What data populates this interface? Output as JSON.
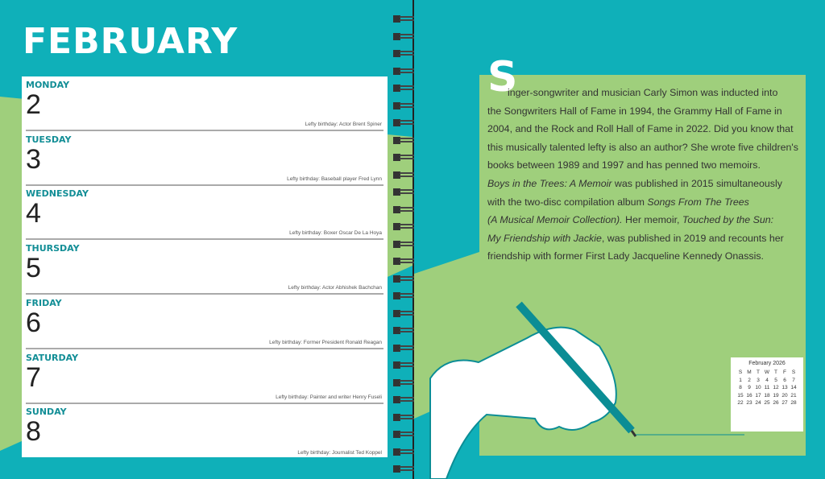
{
  "left_page": {
    "month_title": "FEBRUARY",
    "days": [
      {
        "name": "MONDAY",
        "number": "2",
        "note": "Lefty birthday: Actor Brent Spiner"
      },
      {
        "name": "TUESDAY",
        "number": "3",
        "note": "Lefty birthday: Baseball player Fred Lynn"
      },
      {
        "name": "WEDNESDAY",
        "number": "4",
        "note": "Lefty birthday: Boxer Oscar De La Hoya"
      },
      {
        "name": "THURSDAY",
        "number": "5",
        "note": "Lefty birthday: Actor Abhishek Bachchan"
      },
      {
        "name": "FRIDAY",
        "number": "6",
        "note": "Lefty birthday: Former President Ronald Reagan"
      },
      {
        "name": "SATURDAY",
        "number": "7",
        "note": "Lefty birthday: Painter and writer Henry Fuseli"
      },
      {
        "name": "SUNDAY",
        "number": "8",
        "note": "Lefty birthday: Journalist Ted Koppel"
      }
    ]
  },
  "right_page": {
    "drop_cap": "S",
    "lines": [
      [
        {
          "t": "inger-songwriter and musician Carly Simon was inducted into",
          "i": false
        }
      ],
      [
        {
          "t": "the Songwriters Hall of Fame in 1994, the Grammy Hall of Fame in",
          "i": false
        }
      ],
      [
        {
          "t": "2004, and the Rock and Roll Hall of Fame in 2022. Did you know that",
          "i": false
        }
      ],
      [
        {
          "t": "this musically talented lefty is also an author? She wrote five children's",
          "i": false
        }
      ],
      [
        {
          "t": "books between 1989 and 1997 and has penned two memoirs.",
          "i": false
        }
      ],
      [
        {
          "t": "Boys in the Trees: A Memoir",
          "i": true
        },
        {
          "t": " was published in 2015 simultaneously",
          "i": false
        }
      ],
      [
        {
          "t": "with the two-disc compilation album ",
          "i": false
        },
        {
          "t": "Songs From The Trees",
          "i": true
        }
      ],
      [
        {
          "t": "(A Musical Memoir Collection).",
          "i": true
        },
        {
          "t": " Her memoir, ",
          "i": false
        },
        {
          "t": "Touched by the Sun:",
          "i": true
        }
      ],
      [
        {
          "t": "My Friendship with Jackie",
          "i": true
        },
        {
          "t": ", was published in 2019 and recounts her",
          "i": false
        }
      ],
      [
        {
          "t": "friendship with former First Lady Jacqueline Kennedy Onassis.",
          "i": false
        }
      ]
    ],
    "mini_calendar": {
      "title": "February 2026",
      "weekdays": [
        "S",
        "M",
        "T",
        "W",
        "T",
        "F",
        "S"
      ],
      "weeks": [
        [
          "1",
          "2",
          "3",
          "4",
          "5",
          "6",
          "7"
        ],
        [
          "8",
          "9",
          "10",
          "11",
          "12",
          "13",
          "14"
        ],
        [
          "15",
          "16",
          "17",
          "18",
          "19",
          "20",
          "21"
        ],
        [
          "22",
          "23",
          "24",
          "25",
          "26",
          "27",
          "28"
        ]
      ]
    },
    "illustration": "hand-holding-pencil"
  },
  "colors": {
    "teal": "#0fb0b9",
    "green": "#9fcf7c",
    "day_label": "#128e96"
  }
}
